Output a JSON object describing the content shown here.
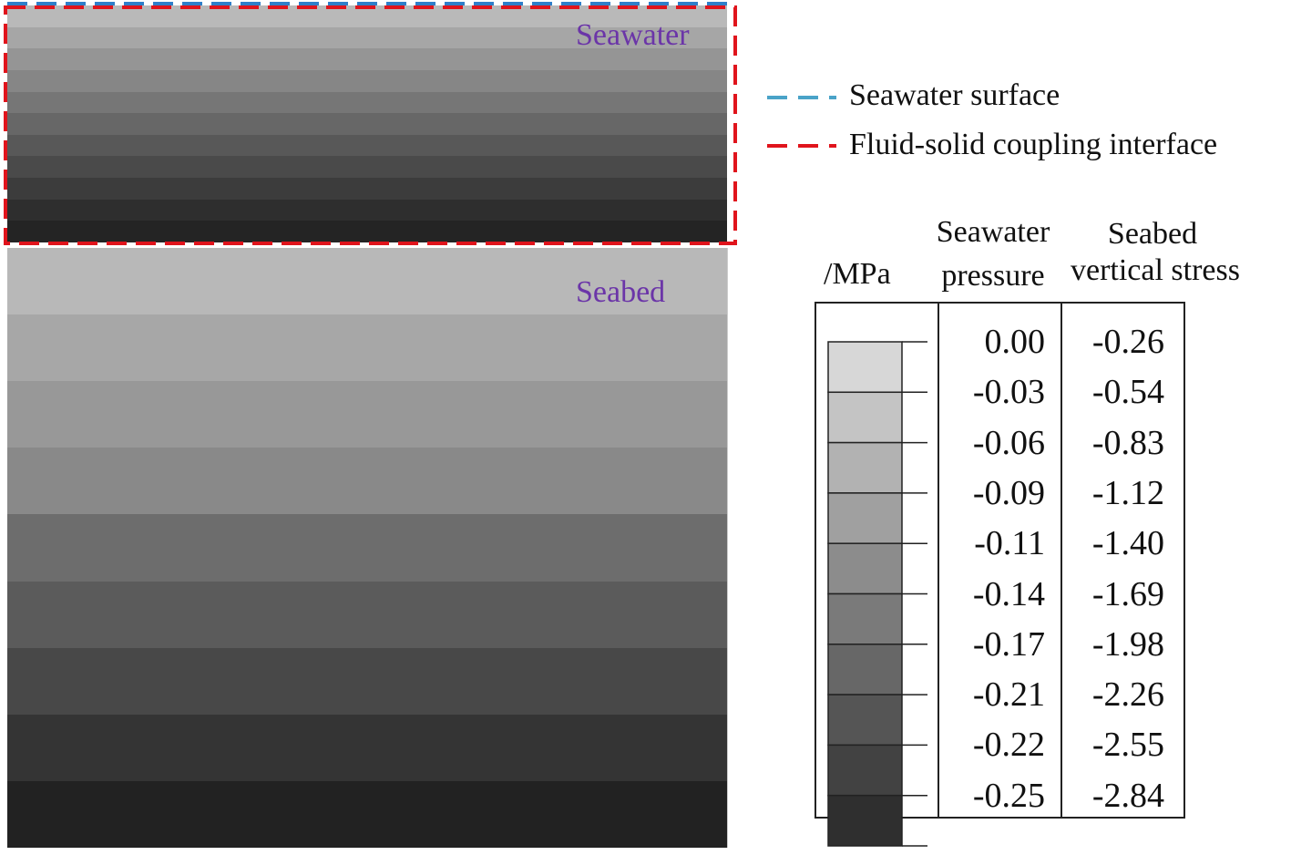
{
  "regions": {
    "seawater_label": "Seawater",
    "seabed_label": "Seabed",
    "seawater_band_colors": [
      "#b9b9b9",
      "#a6a6a6",
      "#959595",
      "#868686",
      "#767676",
      "#676767",
      "#585858",
      "#4a4a4a",
      "#3c3c3c",
      "#2e2e2e",
      "#242424"
    ],
    "seabed_band_colors": [
      "#b8b8b8",
      "#a7a7a7",
      "#989898",
      "#898989",
      "#6d6d6d",
      "#5b5b5b",
      "#484848",
      "#343434",
      "#222222"
    ]
  },
  "line_legend": {
    "items": [
      {
        "label": "Seawater surface",
        "color": "#4aa3c8"
      },
      {
        "label": "Fluid-solid coupling interface",
        "color": "#e0141c"
      }
    ]
  },
  "colorbar": {
    "unit": "/MPa",
    "header_pressure_line1": "Seawater",
    "header_pressure_line2": "pressure",
    "header_stress_line1": "Seabed",
    "header_stress_line2": "vertical stress",
    "swatch_colors": [
      "#d7d7d7",
      "#c4c4c4",
      "#b2b2b2",
      "#a0a0a0",
      "#8c8c8c",
      "#7a7a7a",
      "#676767",
      "#555555",
      "#424242",
      "#2f2f2f"
    ],
    "pressure_values": [
      "0.00",
      "-0.03",
      "-0.06",
      "-0.09",
      "-0.11",
      "-0.14",
      "-0.17",
      "-0.21",
      "-0.22",
      "-0.25"
    ],
    "stress_values": [
      "-0.26",
      "-0.54",
      "-0.83",
      "-1.12",
      "-1.40",
      "-1.69",
      "-1.98",
      "-2.26",
      "-2.55",
      "-2.84"
    ]
  }
}
